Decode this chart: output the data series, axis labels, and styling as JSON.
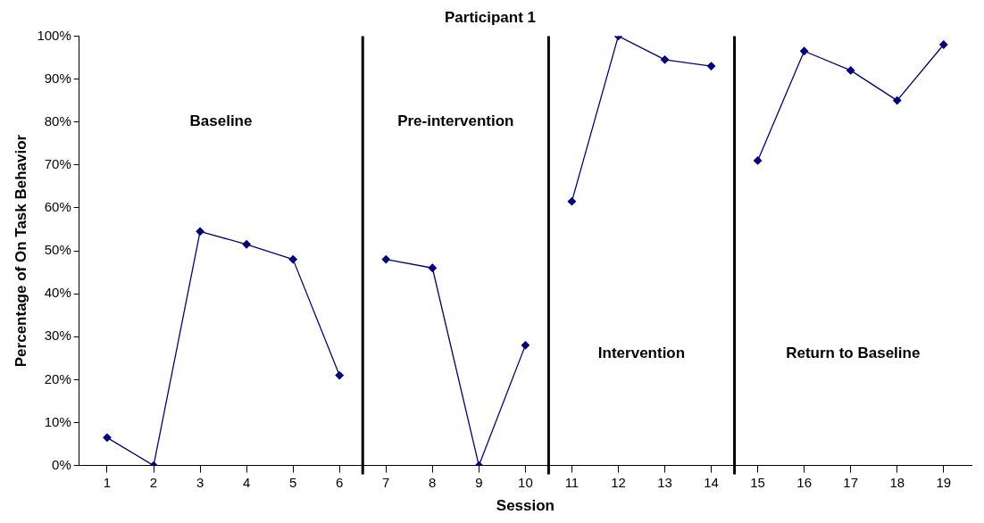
{
  "chart_data": {
    "type": "line",
    "title": "Participant 1",
    "xlabel": "Session",
    "ylabel": "Percentage of On Task Behavior",
    "series": [
      {
        "color": "#000080",
        "x": [
          1,
          2,
          3,
          4,
          5,
          6
        ],
        "values": [
          6.5,
          0,
          54.5,
          51.5,
          48,
          21
        ]
      },
      {
        "color": "#000080",
        "x": [
          7,
          8,
          9,
          10
        ],
        "values": [
          48,
          46,
          0,
          28
        ]
      },
      {
        "color": "#000080",
        "x": [
          11,
          12,
          13,
          14
        ],
        "values": [
          61.5,
          100,
          94.5,
          93
        ]
      },
      {
        "color": "#000080",
        "x": [
          15,
          16,
          17,
          18,
          19
        ],
        "values": [
          71,
          96.5,
          92,
          85,
          98
        ]
      }
    ],
    "xlim": [
      0.4,
      19.6
    ],
    "xticks": [
      1,
      2,
      3,
      4,
      5,
      6,
      7,
      8,
      9,
      10,
      11,
      12,
      13,
      14,
      15,
      16,
      17,
      18,
      19
    ],
    "ylim": [
      0,
      100
    ],
    "yticks": [
      {
        "value": 0,
        "label": "0%"
      },
      {
        "value": 10,
        "label": "10%"
      },
      {
        "value": 20,
        "label": "20%"
      },
      {
        "value": 30,
        "label": "30%"
      },
      {
        "value": 40,
        "label": "40%"
      },
      {
        "value": 50,
        "label": "50%"
      },
      {
        "value": 60,
        "label": "60%"
      },
      {
        "value": 70,
        "label": "70%"
      },
      {
        "value": 80,
        "label": "80%"
      },
      {
        "value": 90,
        "label": "90%"
      },
      {
        "value": 100,
        "label": "100%"
      }
    ],
    "ref_lines": [
      {
        "axis": "x",
        "value": 6.5,
        "color": "#000000"
      },
      {
        "axis": "x",
        "value": 10.5,
        "color": "#000000"
      },
      {
        "axis": "x",
        "value": 14.5,
        "color": "#000000"
      }
    ],
    "annotations": [
      "Baseline",
      "Pre-intervention",
      "Intervention",
      "Return to Baseline"
    ],
    "grid": false,
    "legend": false,
    "marker": "diamond",
    "line_style": "solid"
  }
}
